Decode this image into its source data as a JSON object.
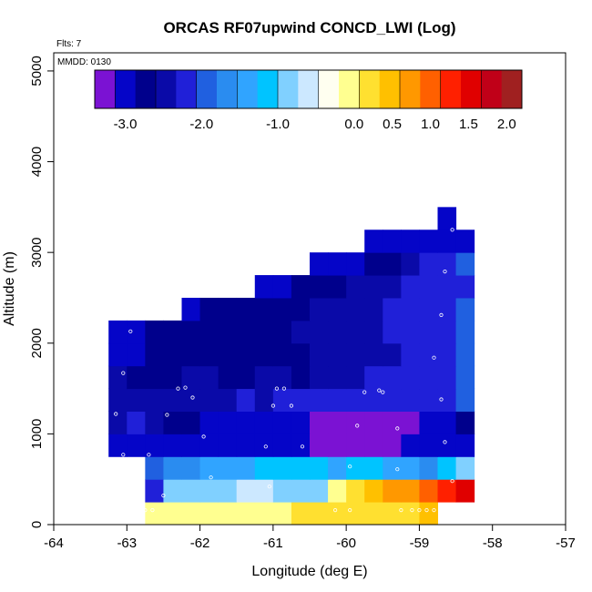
{
  "chart_data": {
    "type": "heatmap",
    "title": "ORCAS RF07upwind CONCD_LWI (Log)",
    "flights_label": "Flts: 7",
    "date_label": "MMDD: 0130",
    "xlabel": "Longitude (deg E)",
    "ylabel": "Altitude (m)",
    "xlim": [
      -64,
      -57
    ],
    "ylim": [
      0,
      5200
    ],
    "x_ticks": [
      -64,
      -63,
      -62,
      -61,
      -60,
      -59,
      -58,
      -57
    ],
    "y_ticks": [
      0,
      1000,
      2000,
      3000,
      4000,
      5000
    ],
    "colorbar": {
      "range": [
        -3.4,
        2.2
      ],
      "ticks": [
        -3.0,
        -2.0,
        -1.0,
        0.0,
        0.5,
        1.0,
        1.5,
        2.0
      ],
      "tick_labels": [
        "-3.0",
        "-2.0",
        "-1.0",
        "0.0",
        "0.5",
        "1.0",
        "1.5",
        "2.0"
      ],
      "colors": [
        "#7b12d3",
        "#0505c8",
        "#00008c",
        "#0a0aa8",
        "#2020d8",
        "#2060e0",
        "#2a8cf0",
        "#30a4ff",
        "#00c4ff",
        "#80d0ff",
        "#cce8ff",
        "#fffff0",
        "#ffff90",
        "#ffe030",
        "#ffc000",
        "#ff9800",
        "#ff6000",
        "#ff2000",
        "#e00000",
        "#c00018",
        "#a02020"
      ]
    },
    "cells": {
      "lon_start": -63.25,
      "lon_step": 0.25,
      "alt_step": 250,
      "rows": [
        {
          "alt": 0,
          "lon_start": -62.75,
          "values": [
            0.0,
            0.0,
            0.0,
            0.0,
            0.05,
            0.05,
            0.05,
            0.05,
            0.1,
            0.1,
            0.1,
            0.2,
            0.25,
            0.25,
            0.3,
            0.35
          ]
        },
        {
          "alt": 250,
          "lon_start": -62.75,
          "values": [
            -2.1,
            -1.0,
            -0.8,
            -0.8,
            -0.75,
            -0.6,
            -0.7,
            -0.8,
            -0.9,
            -1.0,
            0.05,
            0.3,
            0.55,
            0.7,
            0.8,
            1.0,
            1.3,
            1.6
          ]
        },
        {
          "alt": 500,
          "lon_start": -62.75,
          "values": [
            -2.0,
            -1.8,
            -1.7,
            -1.5,
            -1.3,
            -1.3,
            -1.2,
            -1.2,
            -1.2,
            -1.2,
            -1.4,
            -1.2,
            -1.25,
            -1.3,
            -1.5,
            -1.6,
            -1.2,
            -0.8
          ]
        },
        {
          "alt": 750,
          "lon_start": -63.25,
          "values": [
            -3.0,
            -3.0,
            -2.9,
            -2.9,
            -3.0,
            -3.0,
            -3.0,
            -3.0,
            -2.9,
            -3.0,
            -3.1,
            -3.4,
            -3.2,
            -3.3,
            -3.3,
            -3.2,
            -3.0,
            -3.1,
            -2.9,
            -2.95
          ]
        },
        {
          "alt": 1000,
          "lon_start": -63.25,
          "values": [
            -2.5,
            -2.3,
            -2.5,
            -2.7,
            -2.6,
            -2.9,
            -3.0,
            -3.0,
            -3.05,
            -3.1,
            -3.1,
            -3.2,
            -3.3,
            -3.3,
            -3.3,
            -3.3,
            -3.2,
            -3.1,
            -2.9,
            -2.8
          ]
        },
        {
          "alt": 1250,
          "lon_start": -63.25,
          "values": [
            -2.5,
            -2.5,
            -2.5,
            -2.5,
            -2.4,
            -2.4,
            -2.4,
            -2.3,
            -2.35,
            -2.3,
            -2.3,
            -2.3,
            -2.2,
            -2.2,
            -2.2,
            -2.2,
            -2.2,
            -2.2,
            -2.1,
            -2.0
          ]
        },
        {
          "alt": 1500,
          "lon_start": -63.25,
          "values": [
            -2.5,
            -2.6,
            -2.6,
            -2.6,
            -2.5,
            -2.5,
            -2.6,
            -2.6,
            -2.5,
            -2.5,
            -2.6,
            -2.5,
            -2.4,
            -2.4,
            -2.3,
            -2.3,
            -2.3,
            -2.2,
            -2.1,
            -2.0
          ]
        },
        {
          "alt": 1750,
          "lon_start": -63.25,
          "values": [
            -2.9,
            -2.9,
            -2.8,
            -2.8,
            -2.8,
            -2.7,
            -2.7,
            -2.6,
            -2.6,
            -2.6,
            -2.6,
            -2.5,
            -2.5,
            -2.5,
            -2.4,
            -2.4,
            -2.3,
            -2.3,
            -2.2,
            -2.0
          ]
        },
        {
          "alt": 2000,
          "lon_start": -63.25,
          "values": [
            -2.9,
            -2.9,
            -2.8,
            -2.8,
            -2.8,
            -2.7,
            -2.7,
            -2.6,
            -2.6,
            -2.6,
            -2.55,
            -2.5,
            -2.4,
            -2.4,
            -2.35,
            -2.3,
            -2.3,
            -2.2,
            -2.1,
            -2.0
          ]
        },
        {
          "alt": 2250,
          "lon_start": -62.25,
          "values": [
            -2.9,
            -2.8,
            -2.8,
            -2.7,
            -2.7,
            -2.65,
            -2.6,
            -2.55,
            -2.5,
            -2.4,
            -2.35,
            -2.3,
            -2.3,
            -2.2,
            -2.1,
            -2.0
          ]
        },
        {
          "alt": 2500,
          "lon_start": -61.25,
          "values": [
            -3.0,
            -3.0,
            -2.8,
            -2.7,
            -2.6,
            -2.5,
            -2.4,
            -2.35,
            -2.3,
            -2.25,
            -2.2,
            -2.1
          ]
        },
        {
          "alt": 2750,
          "lon_start": -60.5,
          "values": [
            -3.0,
            -3.0,
            -2.9,
            -2.8,
            -2.6,
            -2.4,
            -2.2,
            -2.1,
            -2.0
          ]
        },
        {
          "alt": 3000,
          "lon_start": -59.75,
          "values": [
            -3.0,
            -3.0,
            -3.0,
            -3.0,
            -3.0,
            -3.0
          ]
        },
        {
          "alt": 3250,
          "lon_start": -58.75,
          "values": [
            -3.0
          ]
        }
      ]
    },
    "obs_points": [
      {
        "lon": -62.95,
        "alt": 2130
      },
      {
        "lon": -63.05,
        "alt": 1670
      },
      {
        "lon": -62.3,
        "alt": 1500
      },
      {
        "lon": -62.2,
        "alt": 1510
      },
      {
        "lon": -62.1,
        "alt": 1400
      },
      {
        "lon": -62.45,
        "alt": 1210
      },
      {
        "lon": -63.15,
        "alt": 1220
      },
      {
        "lon": -61.95,
        "alt": 970
      },
      {
        "lon": -61.1,
        "alt": 860
      },
      {
        "lon": -60.95,
        "alt": 1500
      },
      {
        "lon": -60.85,
        "alt": 1500
      },
      {
        "lon": -61.0,
        "alt": 1310
      },
      {
        "lon": -60.75,
        "alt": 1310
      },
      {
        "lon": -60.6,
        "alt": 860
      },
      {
        "lon": -59.85,
        "alt": 1090
      },
      {
        "lon": -59.75,
        "alt": 1460
      },
      {
        "lon": -59.55,
        "alt": 1480
      },
      {
        "lon": -59.5,
        "alt": 1460
      },
      {
        "lon": -59.3,
        "alt": 1060
      },
      {
        "lon": -58.7,
        "alt": 1380
      },
      {
        "lon": -58.65,
        "alt": 910
      },
      {
        "lon": -63.05,
        "alt": 770
      },
      {
        "lon": -62.7,
        "alt": 770
      },
      {
        "lon": -62.5,
        "alt": 320
      },
      {
        "lon": -62.95,
        "alt": 410
      },
      {
        "lon": -61.85,
        "alt": 520
      },
      {
        "lon": -61.05,
        "alt": 420
      },
      {
        "lon": -59.95,
        "alt": 640
      },
      {
        "lon": -59.3,
        "alt": 610
      },
      {
        "lon": -58.55,
        "alt": 480
      },
      {
        "lon": -58.8,
        "alt": 1840
      },
      {
        "lon": -58.7,
        "alt": 2310
      },
      {
        "lon": -58.65,
        "alt": 2790
      },
      {
        "lon": -58.55,
        "alt": 3250
      },
      {
        "lon": -62.85,
        "alt": 160
      },
      {
        "lon": -62.75,
        "alt": 160
      },
      {
        "lon": -62.65,
        "alt": 160
      },
      {
        "lon": -60.15,
        "alt": 160
      },
      {
        "lon": -59.95,
        "alt": 160
      },
      {
        "lon": -59.25,
        "alt": 160
      },
      {
        "lon": -59.1,
        "alt": 160
      },
      {
        "lon": -59.0,
        "alt": 160
      },
      {
        "lon": -58.9,
        "alt": 160
      },
      {
        "lon": -58.8,
        "alt": 160
      },
      {
        "lon": -58.7,
        "alt": 160
      }
    ]
  }
}
